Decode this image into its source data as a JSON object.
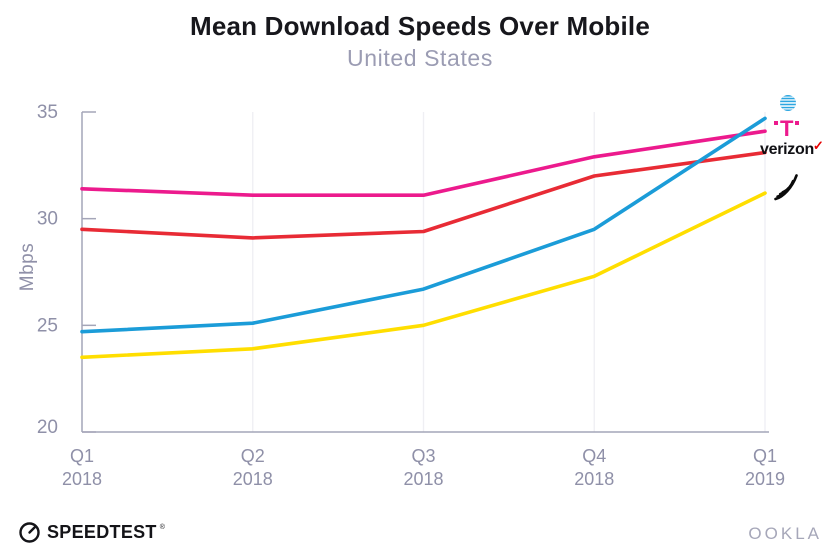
{
  "title": "Mean Download Speeds Over Mobile",
  "subtitle": "United States",
  "chart_data": {
    "type": "line",
    "title": "Mean Download Speeds Over Mobile",
    "subtitle": "United States",
    "xlabel": "",
    "ylabel": "Mbps",
    "ylim": [
      20,
      35
    ],
    "yticks": [
      35,
      30,
      25,
      20
    ],
    "grid": "vertical-only",
    "legend_position": "right",
    "categories": [
      [
        "Q1",
        "2018"
      ],
      [
        "Q2",
        "2018"
      ],
      [
        "Q3",
        "2018"
      ],
      [
        "Q4",
        "2018"
      ],
      [
        "Q1",
        "2019"
      ]
    ],
    "series": [
      {
        "name": "AT&T",
        "color": "#1b9cd8",
        "values": [
          24.7,
          25.1,
          26.7,
          29.5,
          34.7
        ]
      },
      {
        "name": "T-Mobile",
        "color": "#ec1a8d",
        "values": [
          31.4,
          31.1,
          31.1,
          32.9,
          34.1
        ]
      },
      {
        "name": "Verizon",
        "color": "#e82b35",
        "values": [
          29.5,
          29.1,
          29.4,
          32.0,
          33.1
        ]
      },
      {
        "name": "Sprint",
        "color": "#ffde00",
        "values": [
          23.5,
          23.9,
          25.0,
          27.3,
          31.2
        ]
      }
    ]
  },
  "legend": {
    "att_icon": "att-globe-icon",
    "tmobile_t": "T",
    "verizon_text": "verizon",
    "verizon_check": "✓",
    "sprint_icon": "sprint-feather-icon"
  },
  "footer": {
    "speedtest_label": "SPEEDTEST",
    "speedtest_mark": "®",
    "ookla_label": "OOKLA"
  },
  "colors": {
    "att_blue": "#1b9cd8",
    "tmobile_magenta": "#ec1a8d",
    "verizon_red": "#e82b35",
    "sprint_yellow": "#ffde00",
    "verizon_check_red": "#e60000",
    "axis": "#a4a5b8",
    "tick_label": "#8f90a8",
    "grid": "#efeff3",
    "title": "#17171c",
    "subtitle": "#9b9cb3"
  }
}
